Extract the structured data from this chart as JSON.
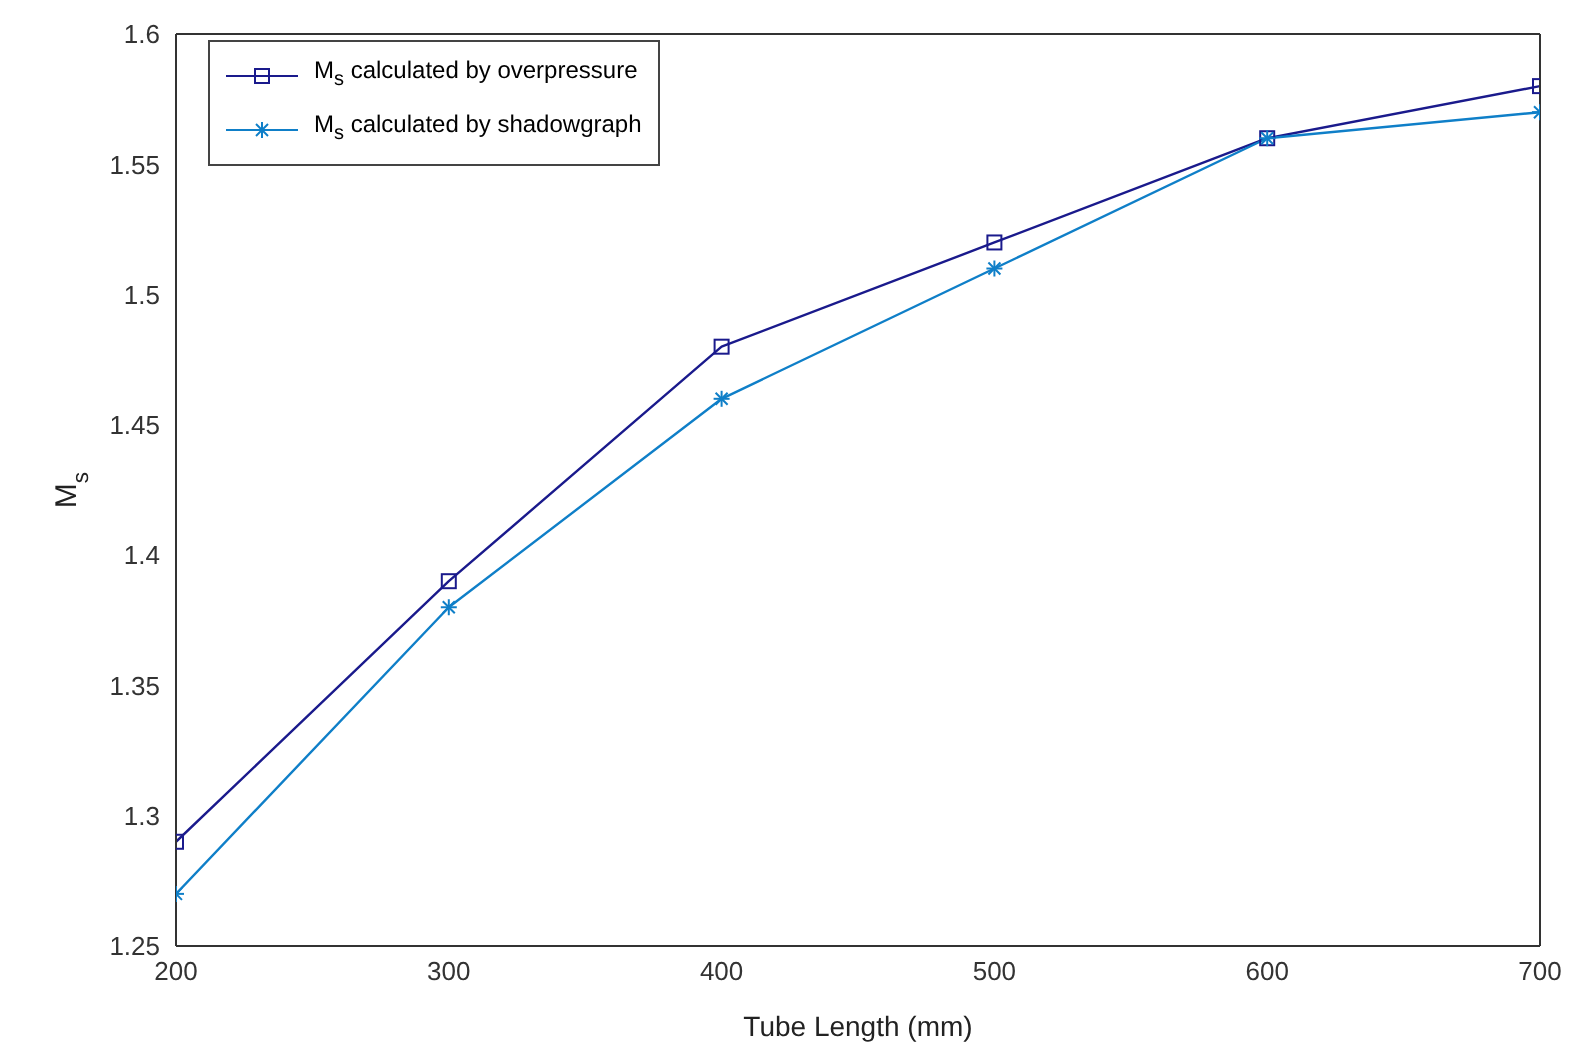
{
  "chart_data": {
    "type": "line",
    "xlabel": "Tube Length (mm)",
    "ylabel": "M$_{s}$",
    "x": [
      200,
      300,
      400,
      500,
      600,
      700
    ],
    "series": [
      {
        "name": "M$_{s}$ calculated by overpressure",
        "color": "#1a1a8c",
        "marker": "square",
        "values": [
          1.29,
          1.39,
          1.48,
          1.52,
          1.56,
          1.58
        ]
      },
      {
        "name": "M$_{s}$ calculated by shadowgraph",
        "color": "#0f7fc8",
        "marker": "cross",
        "values": [
          1.27,
          1.38,
          1.46,
          1.51,
          1.56,
          1.57
        ]
      }
    ],
    "xlim": [
      200,
      700
    ],
    "xticks": [
      200,
      300,
      400,
      500,
      600,
      700
    ],
    "ylim": [
      1.25,
      1.6
    ],
    "yticks": [
      1.25,
      1.3,
      1.35,
      1.4,
      1.45,
      1.5,
      1.55,
      1.6
    ],
    "grid": false,
    "legend": "top left",
    "line_style": "solid"
  }
}
